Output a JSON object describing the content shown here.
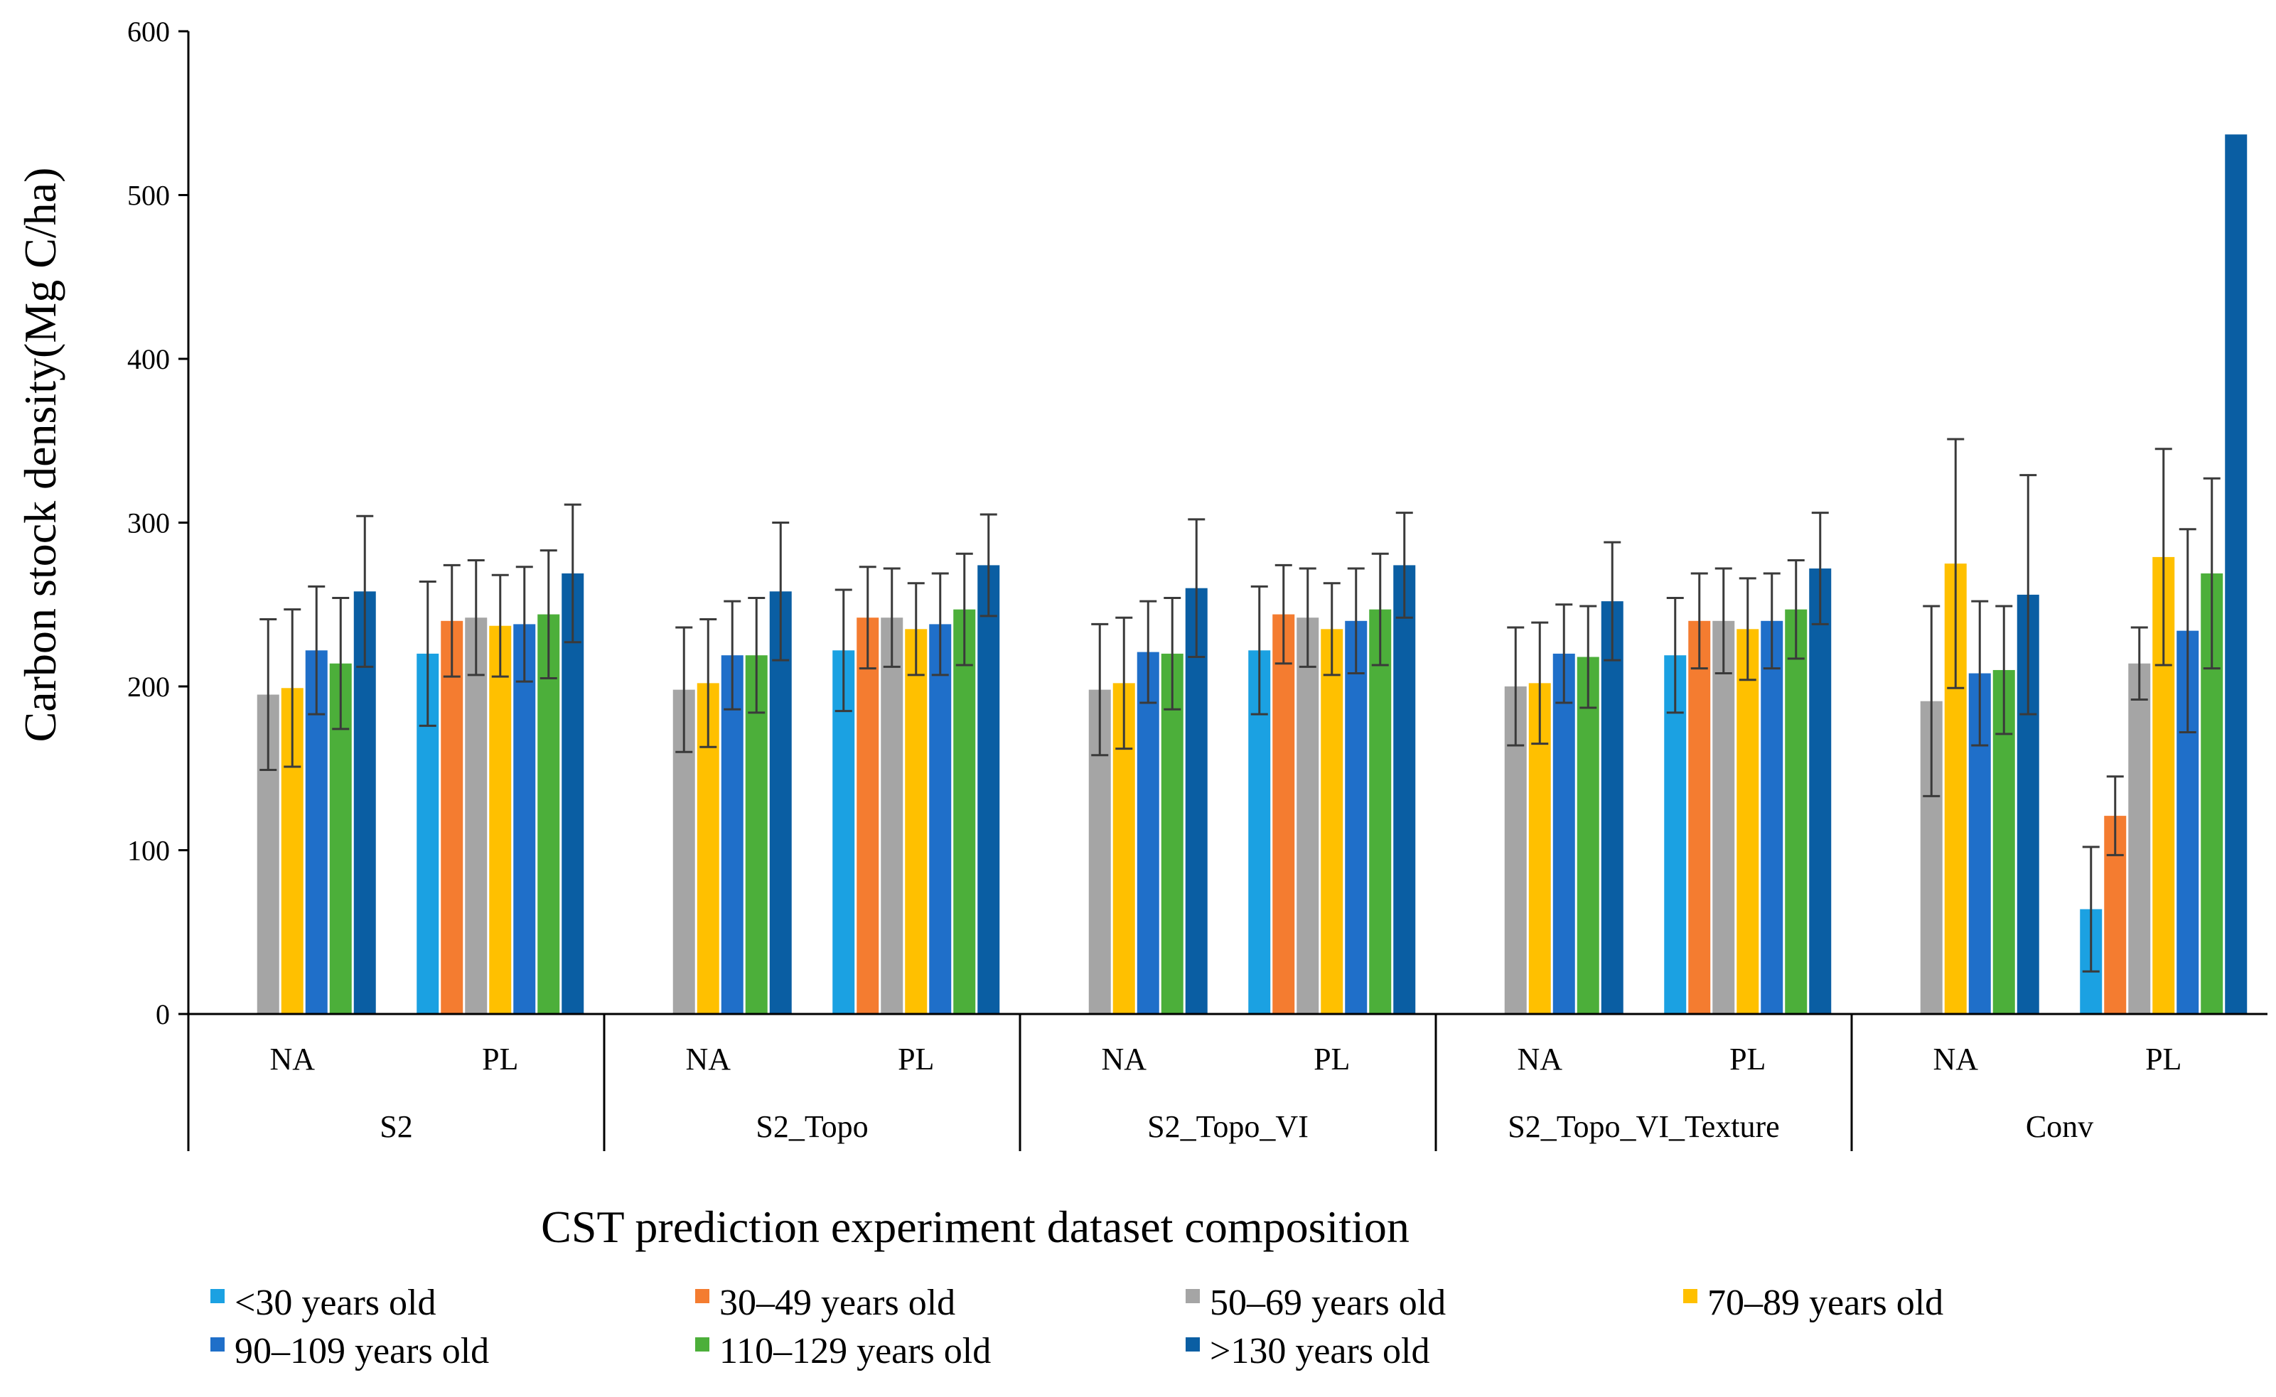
{
  "chart_data": {
    "type": "bar",
    "ylabel": "Carbon stock density(Mg C/ha)",
    "xlabel": "CST prediction experiment  dataset composition",
    "ylim": [
      0,
      600
    ],
    "yticks": [
      0,
      100,
      200,
      300,
      400,
      500,
      600
    ],
    "groups": [
      {
        "label": "S2",
        "categories": [
          "NA",
          "PL"
        ]
      },
      {
        "label": "S2_Topo",
        "categories": [
          "NA",
          "PL"
        ]
      },
      {
        "label": "S2_Topo_VI",
        "categories": [
          "NA",
          "PL"
        ]
      },
      {
        "label": "S2_Topo_VI_Texture",
        "categories": [
          "NA",
          "PL"
        ]
      },
      {
        "label": "Conv",
        "categories": [
          "NA",
          "PL"
        ]
      }
    ],
    "series": [
      {
        "name": "<30 years old",
        "color": "#1BA1E2",
        "values": [
          null,
          220,
          null,
          222,
          null,
          222,
          null,
          219,
          null,
          64
        ],
        "errors": [
          null,
          44,
          null,
          37,
          null,
          39,
          null,
          35,
          null,
          38
        ]
      },
      {
        "name": "30–49 years old",
        "color": "#F47C30",
        "values": [
          null,
          240,
          null,
          242,
          null,
          244,
          null,
          240,
          null,
          121
        ],
        "errors": [
          null,
          34,
          null,
          31,
          null,
          30,
          null,
          29,
          null,
          24
        ]
      },
      {
        "name": "50–69 years old",
        "color": "#A5A5A5",
        "values": [
          195,
          242,
          198,
          242,
          198,
          242,
          200,
          240,
          191,
          214
        ],
        "errors": [
          46,
          35,
          38,
          30,
          40,
          30,
          36,
          32,
          58,
          22
        ]
      },
      {
        "name": "70–89 years old",
        "color": "#FFC000",
        "values": [
          199,
          237,
          202,
          235,
          202,
          235,
          202,
          235,
          275,
          279
        ],
        "errors": [
          48,
          31,
          39,
          28,
          40,
          28,
          37,
          31,
          76,
          66
        ]
      },
      {
        "name": "90–109 years old",
        "color": "#1F6FC9",
        "values": [
          222,
          238,
          219,
          238,
          221,
          240,
          220,
          240,
          208,
          234
        ],
        "errors": [
          39,
          35,
          33,
          31,
          31,
          32,
          30,
          29,
          44,
          62
        ]
      },
      {
        "name": "110–129 years old",
        "color": "#4CAF3A",
        "values": [
          214,
          244,
          219,
          247,
          220,
          247,
          218,
          247,
          210,
          269
        ],
        "errors": [
          40,
          39,
          35,
          34,
          34,
          34,
          31,
          30,
          39,
          58
        ]
      },
      {
        "name": ">130 years old",
        "color": "#0A5EA3",
        "values": [
          258,
          269,
          258,
          274,
          260,
          274,
          252,
          272,
          256,
          537
        ],
        "errors": [
          46,
          42,
          42,
          31,
          42,
          32,
          36,
          34,
          73,
          null
        ]
      }
    ],
    "legend": "bottom"
  }
}
